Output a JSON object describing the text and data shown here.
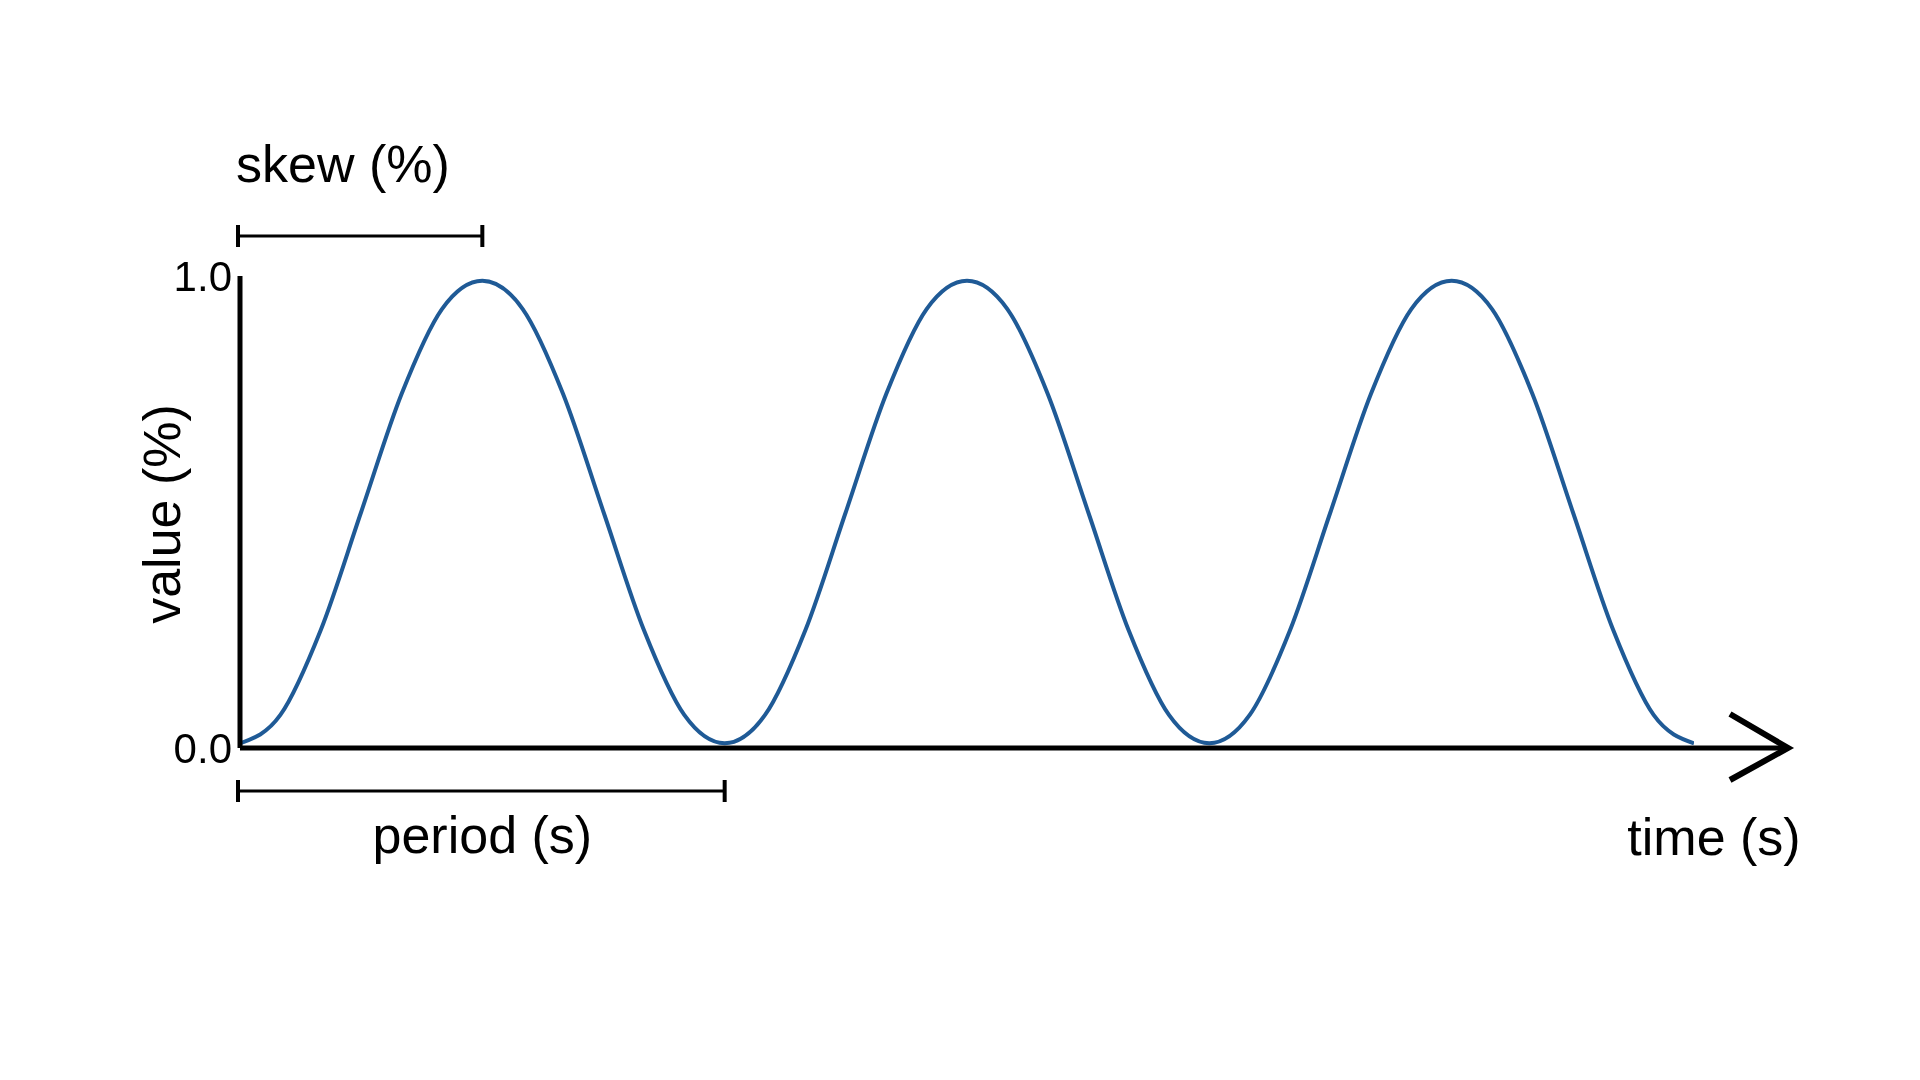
{
  "chart_data": {
    "type": "line",
    "xlabel": "time (s)",
    "ylabel": "value (%)",
    "annotations": [
      "skew (%)",
      "period (s)"
    ],
    "categories": [
      null,
      null,
      null,
      null,
      null,
      null,
      null,
      null,
      null,
      null,
      null,
      null,
      null,
      null,
      null,
      null,
      null,
      null,
      null,
      null,
      null,
      null,
      null,
      null,
      null,
      null,
      null,
      null,
      null,
      null,
      null,
      null,
      null,
      null,
      null,
      null,
      null
    ],
    "series": [
      {
        "color": "#1f5a96",
        "values": [
          0.01,
          0.07,
          0.25,
          0.5,
          0.75,
          0.93,
          0.99,
          0.93,
          0.75,
          0.5,
          0.25,
          0.07,
          0.01,
          0.07,
          0.25,
          0.5,
          0.75,
          0.93,
          0.99,
          0.93,
          0.75,
          0.5,
          0.25,
          0.07,
          0.01,
          0.07,
          0.25,
          0.5,
          0.75,
          0.93,
          0.99,
          0.93,
          0.75,
          0.5,
          0.25,
          0.07,
          0.01
        ]
      }
    ],
    "ylim": [
      0,
      1
    ],
    "yticks": [
      {
        "value": 0,
        "label": "0.0"
      },
      {
        "value": 1,
        "label": "1.0"
      }
    ],
    "tick_labels": "y",
    "marker": "none",
    "line_style": "solid"
  }
}
